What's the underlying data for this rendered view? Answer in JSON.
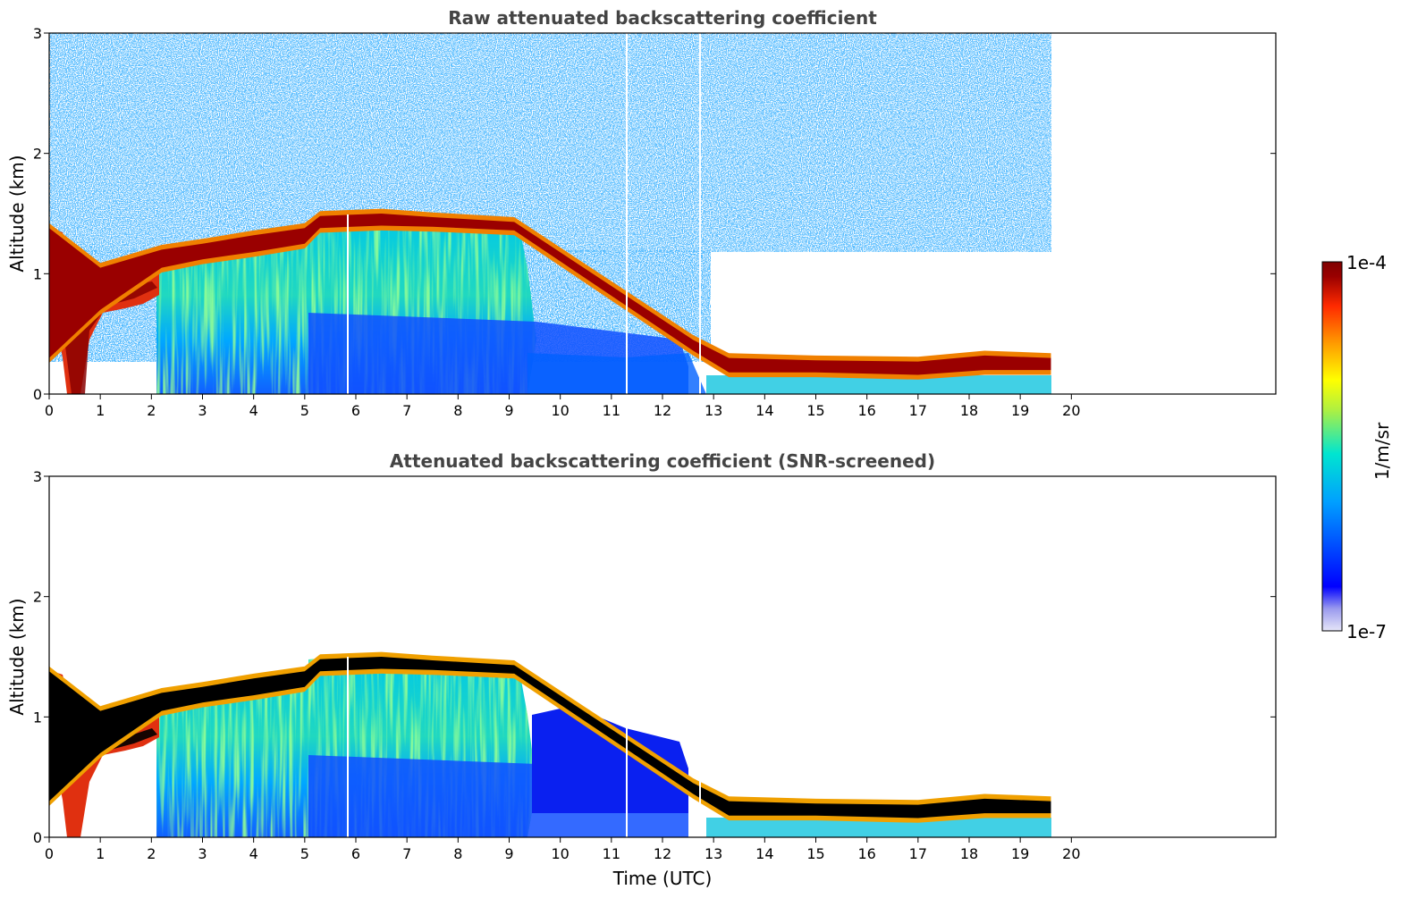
{
  "chart_data": [
    {
      "type": "heatmap",
      "title": "Raw attenuated backscattering coefficient",
      "xlabel": "",
      "ylabel": "Altitude (km)",
      "xlim": [
        0,
        24
      ],
      "ylim": [
        0,
        3
      ],
      "x_ticks": [
        "0",
        "1",
        "2",
        "3",
        "4",
        "5",
        "6",
        "7",
        "8",
        "9",
        "10",
        "11",
        "12",
        "13",
        "14",
        "15",
        "16",
        "17",
        "18",
        "19",
        "20"
      ],
      "y_ticks": [
        "0",
        "1",
        "2",
        "3"
      ],
      "data_end_time": 19.6,
      "cloud_top_layer": [
        {
          "t": 0.0,
          "base": 0.3,
          "top": 1.38
        },
        {
          "t": 1.0,
          "base": 0.7,
          "top": 1.05
        },
        {
          "t": 2.2,
          "base": 1.05,
          "top": 1.2
        },
        {
          "t": 3.0,
          "base": 1.12,
          "top": 1.25
        },
        {
          "t": 4.0,
          "base": 1.18,
          "top": 1.32
        },
        {
          "t": 5.0,
          "base": 1.25,
          "top": 1.38
        },
        {
          "t": 5.3,
          "base": 1.38,
          "top": 1.48
        },
        {
          "t": 6.5,
          "base": 1.4,
          "top": 1.5
        },
        {
          "t": 7.5,
          "base": 1.39,
          "top": 1.47
        },
        {
          "t": 9.1,
          "base": 1.36,
          "top": 1.43
        },
        {
          "t": 12.6,
          "base": 0.36,
          "top": 0.45
        },
        {
          "t": 13.3,
          "base": 0.18,
          "top": 0.3
        },
        {
          "t": 15.0,
          "base": 0.18,
          "top": 0.28
        },
        {
          "t": 17.0,
          "base": 0.16,
          "top": 0.27
        },
        {
          "t": 18.3,
          "base": 0.2,
          "top": 0.32
        },
        {
          "t": 19.6,
          "base": 0.2,
          "top": 0.3
        }
      ]
    },
    {
      "type": "heatmap",
      "title": "Attenuated backscattering coefficient (SNR-screened)",
      "xlabel": "Time (UTC)",
      "ylabel": "Altitude (km)",
      "xlim": [
        0,
        24
      ],
      "ylim": [
        0,
        3
      ],
      "x_ticks": [
        "0",
        "1",
        "2",
        "3",
        "4",
        "5",
        "6",
        "7",
        "8",
        "9",
        "10",
        "11",
        "12",
        "13",
        "14",
        "15",
        "16",
        "17",
        "18",
        "19",
        "20"
      ],
      "y_ticks": [
        "0",
        "1",
        "2",
        "3"
      ],
      "data_end_time": 19.6,
      "saturated_color": "#000000"
    }
  ],
  "colorbar": {
    "label": "1/m/sr",
    "max_label": "1e-4",
    "min_label": "1e-7",
    "scale": "log",
    "range": [
      1e-07,
      0.0001
    ],
    "colors": [
      "#e6e6f8",
      "#0000ff",
      "#00a0ff",
      "#00e5d0",
      "#b0f040",
      "#ffff00",
      "#ff9a00",
      "#ff2a00",
      "#9a0000",
      "#7f0000"
    ]
  }
}
